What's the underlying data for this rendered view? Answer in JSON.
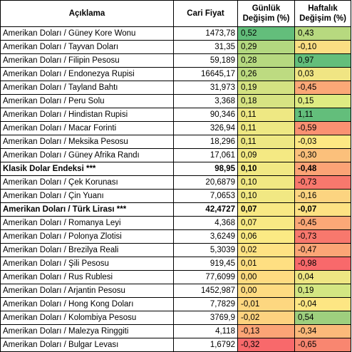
{
  "headers": {
    "description": "Açıklama",
    "price": "Cari Fiyat",
    "daily": "Günlük Değişim (%)",
    "weekly": "Haftalık Değişim (%)"
  },
  "rows": [
    {
      "name": "Amerikan Doları / Güney Kore Wonu",
      "price": "1473,78",
      "daily": "0,52",
      "weekly": "0,43",
      "daily_color": "#63be7b",
      "weekly_color": "#b7d97f",
      "bold": false
    },
    {
      "name": "Amerikan Doları / Tayvan Doları",
      "price": "31,35",
      "daily": "0,29",
      "weekly": "-0,10",
      "daily_color": "#b3d880",
      "weekly_color": "#fbde83",
      "bold": false
    },
    {
      "name": "Amerikan Doları / Filipin Pesosu",
      "price": "59,189",
      "daily": "0,28",
      "weekly": "0,97",
      "daily_color": "#b6d980",
      "weekly_color": "#63be7b",
      "bold": false
    },
    {
      "name": "Amerikan Doları / Endonezya Rupisi",
      "price": "16645,17",
      "daily": "0,26",
      "weekly": "0,03",
      "daily_color": "#bddb81",
      "weekly_color": "#f0e583",
      "bold": false
    },
    {
      "name": "Amerikan Doları / Tayland Bahtı",
      "price": "31,973",
      "daily": "0,19",
      "weekly": "-0,45",
      "daily_color": "#d4e282",
      "weekly_color": "#fba877",
      "bold": false
    },
    {
      "name": "Amerikan Doları / Peru Solu",
      "price": "3,368",
      "daily": "0,18",
      "weekly": "0,15",
      "daily_color": "#d7e382",
      "weekly_color": "#deeb82",
      "bold": false
    },
    {
      "name": "Amerikan Doları / Hindistan Rupisi",
      "price": "90,346",
      "daily": "0,11",
      "weekly": "1,11",
      "daily_color": "#eee883",
      "weekly_color": "#63be7b",
      "bold": false
    },
    {
      "name": "Amerikan Doları / Macar Forinti",
      "price": "326,94",
      "daily": "0,11",
      "weekly": "-0,59",
      "daily_color": "#eee883",
      "weekly_color": "#fa9172",
      "bold": false
    },
    {
      "name": "Amerikan Doları / Meksika Pesosu",
      "price": "18,296",
      "daily": "0,11",
      "weekly": "-0,03",
      "daily_color": "#eee883",
      "weekly_color": "#fde883",
      "bold": false
    },
    {
      "name": "Amerikan Doları / Güney Afrika Randı",
      "price": "17,061",
      "daily": "0,09",
      "weekly": "-0,30",
      "daily_color": "#f4e983",
      "weekly_color": "#fbc07b",
      "bold": false
    },
    {
      "name": "Klasik Dolar Endeksi ***",
      "price": "98,95",
      "daily": "0,10",
      "weekly": "-0,48",
      "daily_color": "#f1e883",
      "weekly_color": "#fba376",
      "bold": true
    },
    {
      "name": "Amerikan Doları / Çek Korunası",
      "price": "20,6879",
      "daily": "0,10",
      "weekly": "-0,73",
      "daily_color": "#f1e883",
      "weekly_color": "#f8786d",
      "bold": false
    },
    {
      "name": "Amerikan Doları / Çin Yuanı",
      "price": "7,0653",
      "daily": "0,10",
      "weekly": "-0,16",
      "daily_color": "#f1e883",
      "weekly_color": "#fcd480",
      "bold": false
    },
    {
      "name": "Amerikan Doları / Türk Lirası ***",
      "price": "42,4727",
      "daily": "0,07",
      "weekly": "-0,07",
      "daily_color": "#f8e984",
      "weekly_color": "#fde283",
      "bold": true
    },
    {
      "name": "Amerikan Doları / Romanya Leyi",
      "price": "4,368",
      "daily": "0,07",
      "weekly": "-0,45",
      "daily_color": "#f8e984",
      "weekly_color": "#fba877",
      "bold": false
    },
    {
      "name": "Amerikan Doları / Polonya Zlotisi",
      "price": "3,6249",
      "daily": "0,06",
      "weekly": "-0,73",
      "daily_color": "#fbea84",
      "weekly_color": "#f8786d",
      "bold": false
    },
    {
      "name": "Amerikan Doları / Brezilya Reali",
      "price": "5,3039",
      "daily": "0,02",
      "weekly": "-0,47",
      "daily_color": "#fee283",
      "weekly_color": "#fba576",
      "bold": false
    },
    {
      "name": "Amerikan Doları / Şili Pesosu",
      "price": "919,45",
      "daily": "0,01",
      "weekly": "-0,98",
      "daily_color": "#fedf82",
      "weekly_color": "#f8696b",
      "bold": false
    },
    {
      "name": "Amerikan Doları / Rus Rublesi",
      "price": "77,6099",
      "daily": "0,00",
      "weekly": "0,04",
      "daily_color": "#fedb81",
      "weekly_color": "#eee683",
      "bold": false
    },
    {
      "name": "Amerikan Doları / Arjantin Pesosu",
      "price": "1452,987",
      "daily": "0,00",
      "weekly": "0,19",
      "daily_color": "#fedb81",
      "weekly_color": "#d3e682",
      "bold": false
    },
    {
      "name": "Amerikan Doları / Hong Kong Doları",
      "price": "7,7829",
      "daily": "-0,01",
      "weekly": "-0,04",
      "daily_color": "#fdd780",
      "weekly_color": "#fde683",
      "bold": false
    },
    {
      "name": "Amerikan Doları / Kolombiya Pesosu",
      "price": "3769,9",
      "daily": "-0,02",
      "weekly": "0,54",
      "daily_color": "#fdd27f",
      "weekly_color": "#9ecf7e",
      "bold": false
    },
    {
      "name": "Amerikan Doları / Malezya Ringgiti",
      "price": "4,118",
      "daily": "-0,13",
      "weekly": "-0,34",
      "daily_color": "#fba476",
      "weekly_color": "#fbb97a",
      "bold": false
    },
    {
      "name": "Amerikan Doları / Bulgar Levası",
      "price": "1,6792",
      "daily": "-0,32",
      "weekly": "-0,65",
      "daily_color": "#f8696b",
      "weekly_color": "#f98670",
      "bold": false
    }
  ]
}
